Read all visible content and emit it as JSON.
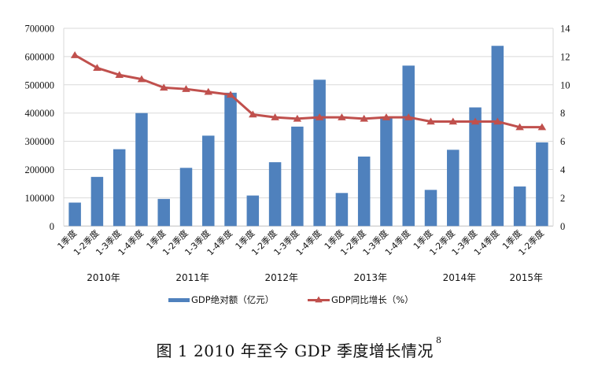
{
  "chart_data": {
    "type": "bar+line",
    "title": "图 1  2010 年至今 GDP 季度增长情况",
    "title_footnote": "8",
    "categories": [
      "1季度",
      "1-2季度",
      "1-3季度",
      "1-4季度",
      "1季度",
      "1-2季度",
      "1-3季度",
      "1-4季度",
      "1季度",
      "1-2季度",
      "1-3季度",
      "1-4季度",
      "1季度",
      "1-2季度",
      "1-3季度",
      "1-4季度",
      "1季度",
      "1-2季度",
      "1-3季度",
      "1-4季度",
      "1季度",
      "1-2季度"
    ],
    "groups": [
      {
        "label": "2010年",
        "count": 4
      },
      {
        "label": "2011年",
        "count": 4
      },
      {
        "label": "2012年",
        "count": 4
      },
      {
        "label": "2013年",
        "count": 4
      },
      {
        "label": "2014年",
        "count": 4
      },
      {
        "label": "2015年",
        "count": 2
      }
    ],
    "series": [
      {
        "name": "GDP绝对额（亿元）",
        "type": "bar",
        "axis": "left",
        "color": "#4F81BD",
        "values": [
          83000,
          174000,
          272000,
          400000,
          96000,
          206000,
          320000,
          472000,
          108000,
          226000,
          352000,
          518000,
          117000,
          246000,
          388000,
          568000,
          128000,
          270000,
          420000,
          638000,
          140000,
          296000
        ]
      },
      {
        "name": "GDP同比增长（%）",
        "type": "line",
        "marker": "triangle",
        "axis": "right",
        "color": "#C0504D",
        "values": [
          12.1,
          11.2,
          10.7,
          10.4,
          9.8,
          9.7,
          9.5,
          9.3,
          7.9,
          7.7,
          7.6,
          7.7,
          7.7,
          7.6,
          7.7,
          7.7,
          7.4,
          7.4,
          7.4,
          7.4,
          7.0,
          7.0
        ]
      }
    ],
    "y_left": {
      "min": 0,
      "max": 700000,
      "ticks": [
        "0",
        "100000",
        "200000",
        "300000",
        "400000",
        "500000",
        "600000",
        "700000"
      ]
    },
    "y_right": {
      "min": 0,
      "max": 14,
      "ticks": [
        "0",
        "2",
        "4",
        "6",
        "8",
        "10",
        "12",
        "14"
      ]
    },
    "grid": true,
    "legend_position": "bottom",
    "colors": {
      "grid": "#D9D9D9",
      "axis": "#BFBFBF"
    }
  }
}
